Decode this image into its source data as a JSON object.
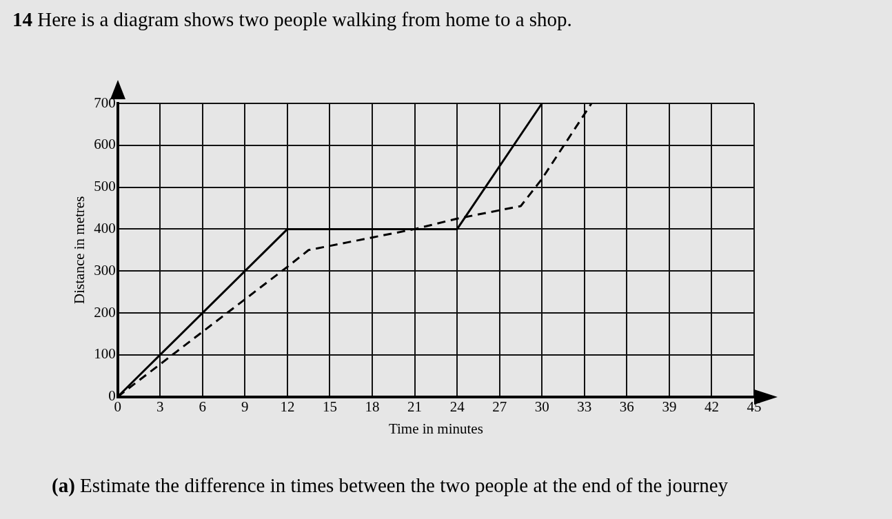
{
  "chart_data": {
    "type": "line",
    "title": "14  Here is a diagram shows two people walking from home to a shop.",
    "xlabel": "Time in minutes",
    "ylabel": "Distance in metres",
    "annotations": [
      "(a)  Estimate the difference in times between the two people at the end of the journey"
    ],
    "xlim": [
      0,
      45
    ],
    "xticks": [
      0,
      3,
      6,
      9,
      12,
      15,
      18,
      21,
      24,
      27,
      30,
      33,
      36,
      39,
      42,
      45
    ],
    "ylim": [
      0,
      700
    ],
    "yticks": [
      0,
      100,
      200,
      300,
      400,
      500,
      600,
      700
    ],
    "grid": true,
    "legend": false,
    "marker": "none",
    "series": [
      {
        "color": "#000000",
        "line_style": "solid",
        "x": [
          0,
          12,
          24,
          30
        ],
        "values": [
          0,
          400,
          400,
          700
        ]
      },
      {
        "color": "#000000",
        "line_style": "dashed",
        "x": [
          0,
          12,
          13.5,
          21,
          24,
          28.5,
          30,
          33.5
        ],
        "values": [
          0,
          310,
          350,
          400,
          425,
          455,
          520,
          700
        ]
      }
    ]
  }
}
